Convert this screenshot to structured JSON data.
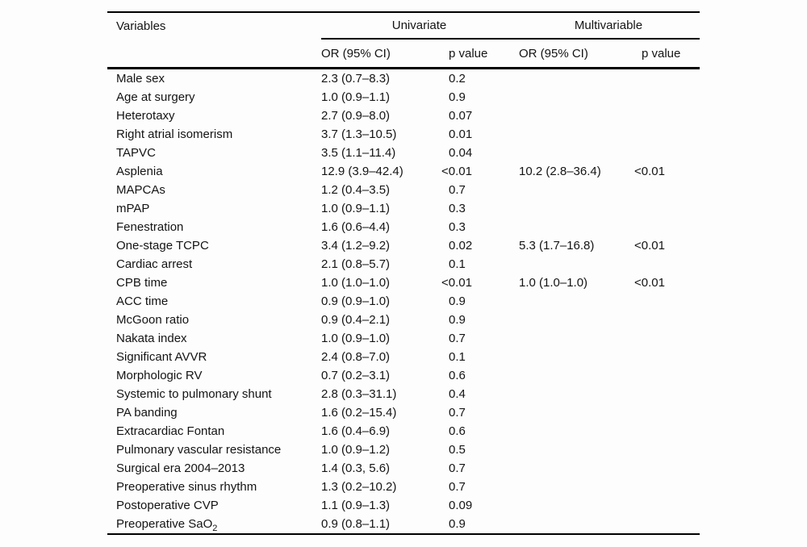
{
  "page": {
    "background": "#fdfdfd",
    "text_color": "#141414",
    "rule_color": "#000000"
  },
  "table": {
    "columns_header": "Variables",
    "groups": [
      {
        "label": "Univariate"
      },
      {
        "label": "Multivariable"
      }
    ],
    "subheaders": [
      "OR (95% CI)",
      "p value",
      "OR (95% CI)",
      "p value"
    ],
    "rows": [
      {
        "variable": "Male sex",
        "uni_or": "2.3 (0.7–8.3)",
        "uni_p": "0.2",
        "multi_or": "",
        "multi_p": ""
      },
      {
        "variable": "Age at surgery",
        "uni_or": "1.0 (0.9–1.1)",
        "uni_p": "0.9",
        "multi_or": "",
        "multi_p": ""
      },
      {
        "variable": "Heterotaxy",
        "uni_or": "2.7 (0.9–8.0)",
        "uni_p": "0.07",
        "multi_or": "",
        "multi_p": ""
      },
      {
        "variable": "Right atrial isomerism",
        "uni_or": "3.7 (1.3–10.5)",
        "uni_p": "0.01",
        "multi_or": "",
        "multi_p": ""
      },
      {
        "variable": "TAPVC",
        "uni_or": "3.5 (1.1–11.4)",
        "uni_p": "0.04",
        "multi_or": "",
        "multi_p": ""
      },
      {
        "variable": "Asplenia",
        "uni_or": "12.9 (3.9–42.4)",
        "uni_p": "<0.01",
        "multi_or": "10.2 (2.8–36.4)",
        "multi_p": "<0.01"
      },
      {
        "variable": "MAPCAs",
        "uni_or": "1.2 (0.4–3.5)",
        "uni_p": "0.7",
        "multi_or": "",
        "multi_p": ""
      },
      {
        "variable": "mPAP",
        "uni_or": "1.0 (0.9–1.1)",
        "uni_p": "0.3",
        "multi_or": "",
        "multi_p": ""
      },
      {
        "variable": "Fenestration",
        "uni_or": "1.6 (0.6–4.4)",
        "uni_p": "0.3",
        "multi_or": "",
        "multi_p": ""
      },
      {
        "variable": "One-stage TCPC",
        "uni_or": "3.4 (1.2–9.2)",
        "uni_p": "0.02",
        "multi_or": "5.3 (1.7–16.8)",
        "multi_p": "<0.01"
      },
      {
        "variable": "Cardiac arrest",
        "uni_or": "2.1 (0.8–5.7)",
        "uni_p": "0.1",
        "multi_or": "",
        "multi_p": ""
      },
      {
        "variable": "CPB time",
        "uni_or": "1.0 (1.0–1.0)",
        "uni_p": "<0.01",
        "multi_or": "1.0 (1.0–1.0)",
        "multi_p": "<0.01"
      },
      {
        "variable": "ACC time",
        "uni_or": "0.9 (0.9–1.0)",
        "uni_p": "0.9",
        "multi_or": "",
        "multi_p": ""
      },
      {
        "variable": "McGoon ratio",
        "uni_or": "0.9 (0.4–2.1)",
        "uni_p": "0.9",
        "multi_or": "",
        "multi_p": ""
      },
      {
        "variable": "Nakata index",
        "uni_or": "1.0 (0.9–1.0)",
        "uni_p": "0.7",
        "multi_or": "",
        "multi_p": ""
      },
      {
        "variable": "Significant AVVR",
        "uni_or": "2.4 (0.8–7.0)",
        "uni_p": "0.1",
        "multi_or": "",
        "multi_p": ""
      },
      {
        "variable": "Morphologic RV",
        "uni_or": "0.7 (0.2–3.1)",
        "uni_p": "0.6",
        "multi_or": "",
        "multi_p": ""
      },
      {
        "variable": "Systemic to pulmonary shunt",
        "uni_or": "2.8 (0.3–31.1)",
        "uni_p": "0.4",
        "multi_or": "",
        "multi_p": ""
      },
      {
        "variable": "PA banding",
        "uni_or": "1.6 (0.2–15.4)",
        "uni_p": "0.7",
        "multi_or": "",
        "multi_p": ""
      },
      {
        "variable": "Extracardiac Fontan",
        "uni_or": "1.6 (0.4–6.9)",
        "uni_p": "0.6",
        "multi_or": "",
        "multi_p": ""
      },
      {
        "variable": "Pulmonary vascular resistance",
        "uni_or": "1.0 (0.9–1.2)",
        "uni_p": "0.5",
        "multi_or": "",
        "multi_p": ""
      },
      {
        "variable": "Surgical era 2004–2013",
        "uni_or": "1.4 (0.3, 5.6)",
        "uni_p": "0.7",
        "multi_or": "",
        "multi_p": ""
      },
      {
        "variable": "Preoperative sinus rhythm",
        "uni_or": "1.3 (0.2–10.2)",
        "uni_p": "0.7",
        "multi_or": "",
        "multi_p": ""
      },
      {
        "variable": "Postoperative CVP",
        "uni_or": "1.1 (0.9–1.3)",
        "uni_p": "0.09",
        "multi_or": "",
        "multi_p": ""
      },
      {
        "variable": "Preoperative SaO",
        "variable_sub": "2",
        "uni_or": "0.9 (0.8–1.1)",
        "uni_p": "0.9",
        "multi_or": "",
        "multi_p": ""
      }
    ]
  }
}
